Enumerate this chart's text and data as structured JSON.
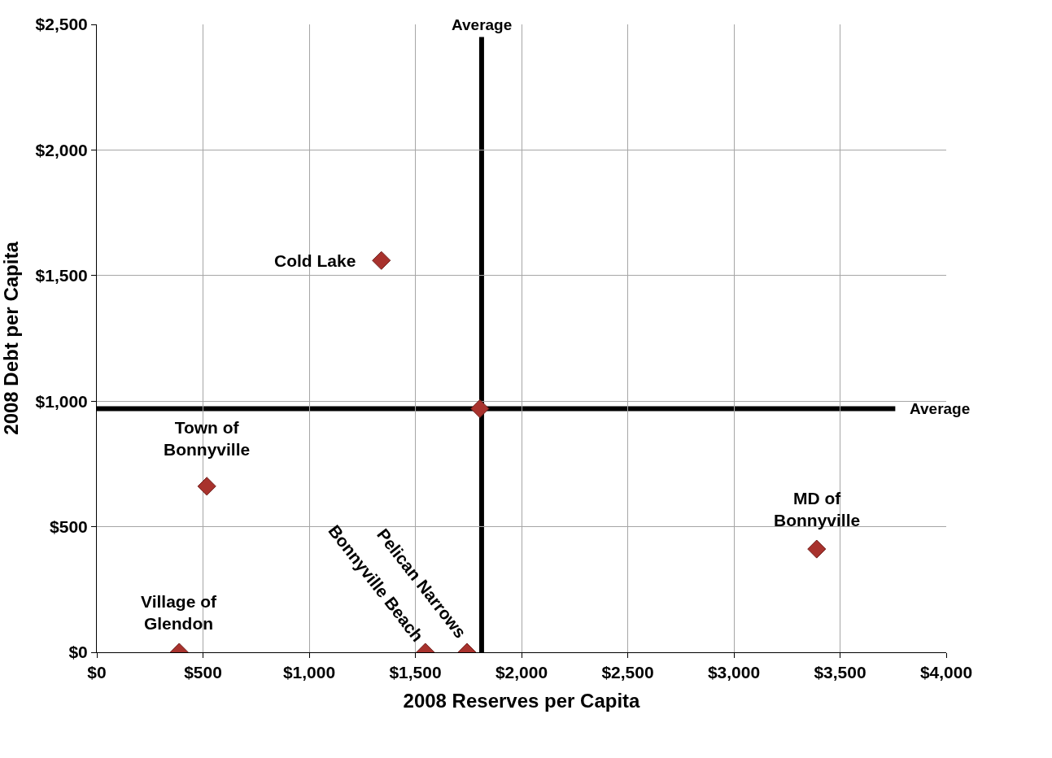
{
  "chart_data": {
    "type": "scatter",
    "xlabel": "2008 Reserves per Capita",
    "ylabel": "2008 Debt per Capita",
    "series": [
      {
        "color": "#a8322d",
        "x": [
          1340,
          1804,
          518,
          388,
          1547,
          1743,
          3390
        ],
        "values": [
          1560,
          970,
          661,
          0,
          0,
          0,
          411
        ]
      }
    ],
    "annotations": [
      {
        "text": "Cold Lake",
        "x": 1340,
        "y": 1560
      },
      {
        "text": "Town of\nBonnyville",
        "x": 518,
        "y": 661
      },
      {
        "text": "Village of\nGlendon",
        "x": 388,
        "y": 0
      },
      {
        "text": "Bonnyville Beach",
        "x": 1547,
        "y": 0
      },
      {
        "text": "Pelican Narrows",
        "x": 1743,
        "y": 0
      },
      {
        "text": "MD of\nBonnyville",
        "x": 3390,
        "y": 411
      }
    ],
    "ref_lines": [
      {
        "axis": "x",
        "value": 1812,
        "label": "Average",
        "color": "#000000"
      },
      {
        "axis": "y",
        "value": 970,
        "label": "Average",
        "color": "#000000"
      }
    ],
    "xlim": [
      0,
      4000
    ],
    "xticks": [
      {
        "value": 0,
        "label": "$0"
      },
      {
        "value": 500,
        "label": "$500"
      },
      {
        "value": 1000,
        "label": "$1,000"
      },
      {
        "value": 1500,
        "label": "$1,500"
      },
      {
        "value": 2000,
        "label": "$2,000"
      },
      {
        "value": 2500,
        "label": "$2,500"
      },
      {
        "value": 3000,
        "label": "$3,000"
      },
      {
        "value": 3500,
        "label": "$3,500"
      },
      {
        "value": 4000,
        "label": "$4,000"
      }
    ],
    "ylim": [
      0,
      2500
    ],
    "yticks": [
      {
        "value": 0,
        "label": "$0"
      },
      {
        "value": 500,
        "label": "$500"
      },
      {
        "value": 1000,
        "label": "$1,000"
      },
      {
        "value": 1500,
        "label": "$1,500"
      },
      {
        "value": 2000,
        "label": "$2,000"
      },
      {
        "value": 2500,
        "label": "$2,500"
      }
    ],
    "grid": true,
    "marker": "diamond"
  }
}
